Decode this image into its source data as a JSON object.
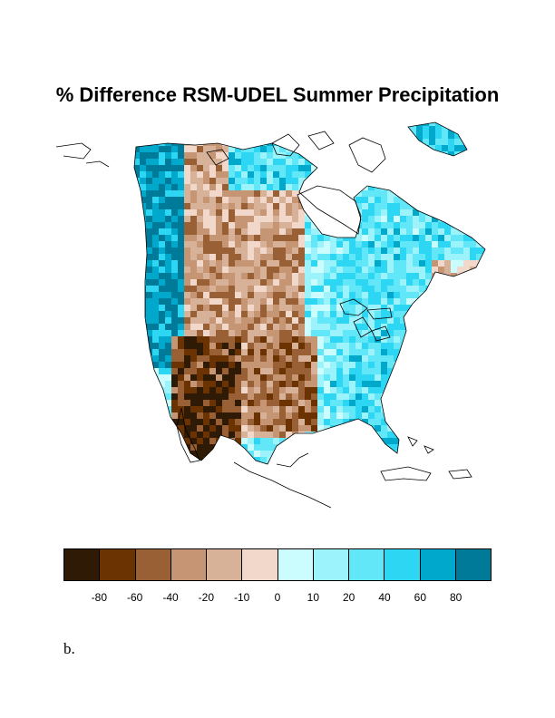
{
  "title": "% Difference RSM-UDEL Summer Precipitation",
  "panel_label": "b.",
  "legend": {
    "colors": [
      "#2e1a05",
      "#6b3202",
      "#9a6035",
      "#c69674",
      "#d8b298",
      "#f2d8ca",
      "#ccfdfe",
      "#9cf3fb",
      "#62e7f8",
      "#2dd6f2",
      "#00a9cc",
      "#007a99"
    ],
    "tick_labels": [
      "-80",
      "-60",
      "-40",
      "-20",
      "-10",
      "0",
      "10",
      "20",
      "40",
      "60",
      "80"
    ]
  },
  "colors": {
    "coastline": "#000000",
    "no_data": "#ffffff"
  }
}
